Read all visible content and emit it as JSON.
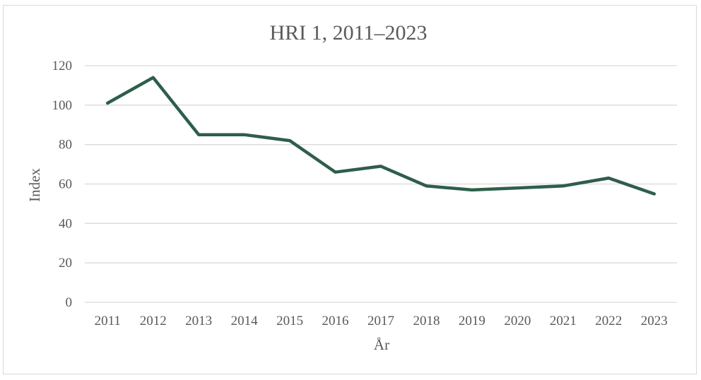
{
  "chart_data": {
    "type": "line",
    "title": "HRI 1, 2011–2023",
    "xlabel": "År",
    "ylabel": "Index",
    "categories": [
      "2011",
      "2012",
      "2013",
      "2014",
      "2015",
      "2016",
      "2017",
      "2018",
      "2019",
      "2020",
      "2021",
      "2022",
      "2023"
    ],
    "series": [
      {
        "values": [
          101,
          114,
          85,
          85,
          82,
          66,
          69,
          59,
          57,
          58,
          59,
          63,
          55
        ],
        "color": "#2e5e4a"
      }
    ],
    "ylim": [
      0,
      120
    ],
    "yticks": [
      0,
      20,
      40,
      60,
      80,
      100,
      120
    ],
    "grid": true,
    "legend": "none"
  }
}
